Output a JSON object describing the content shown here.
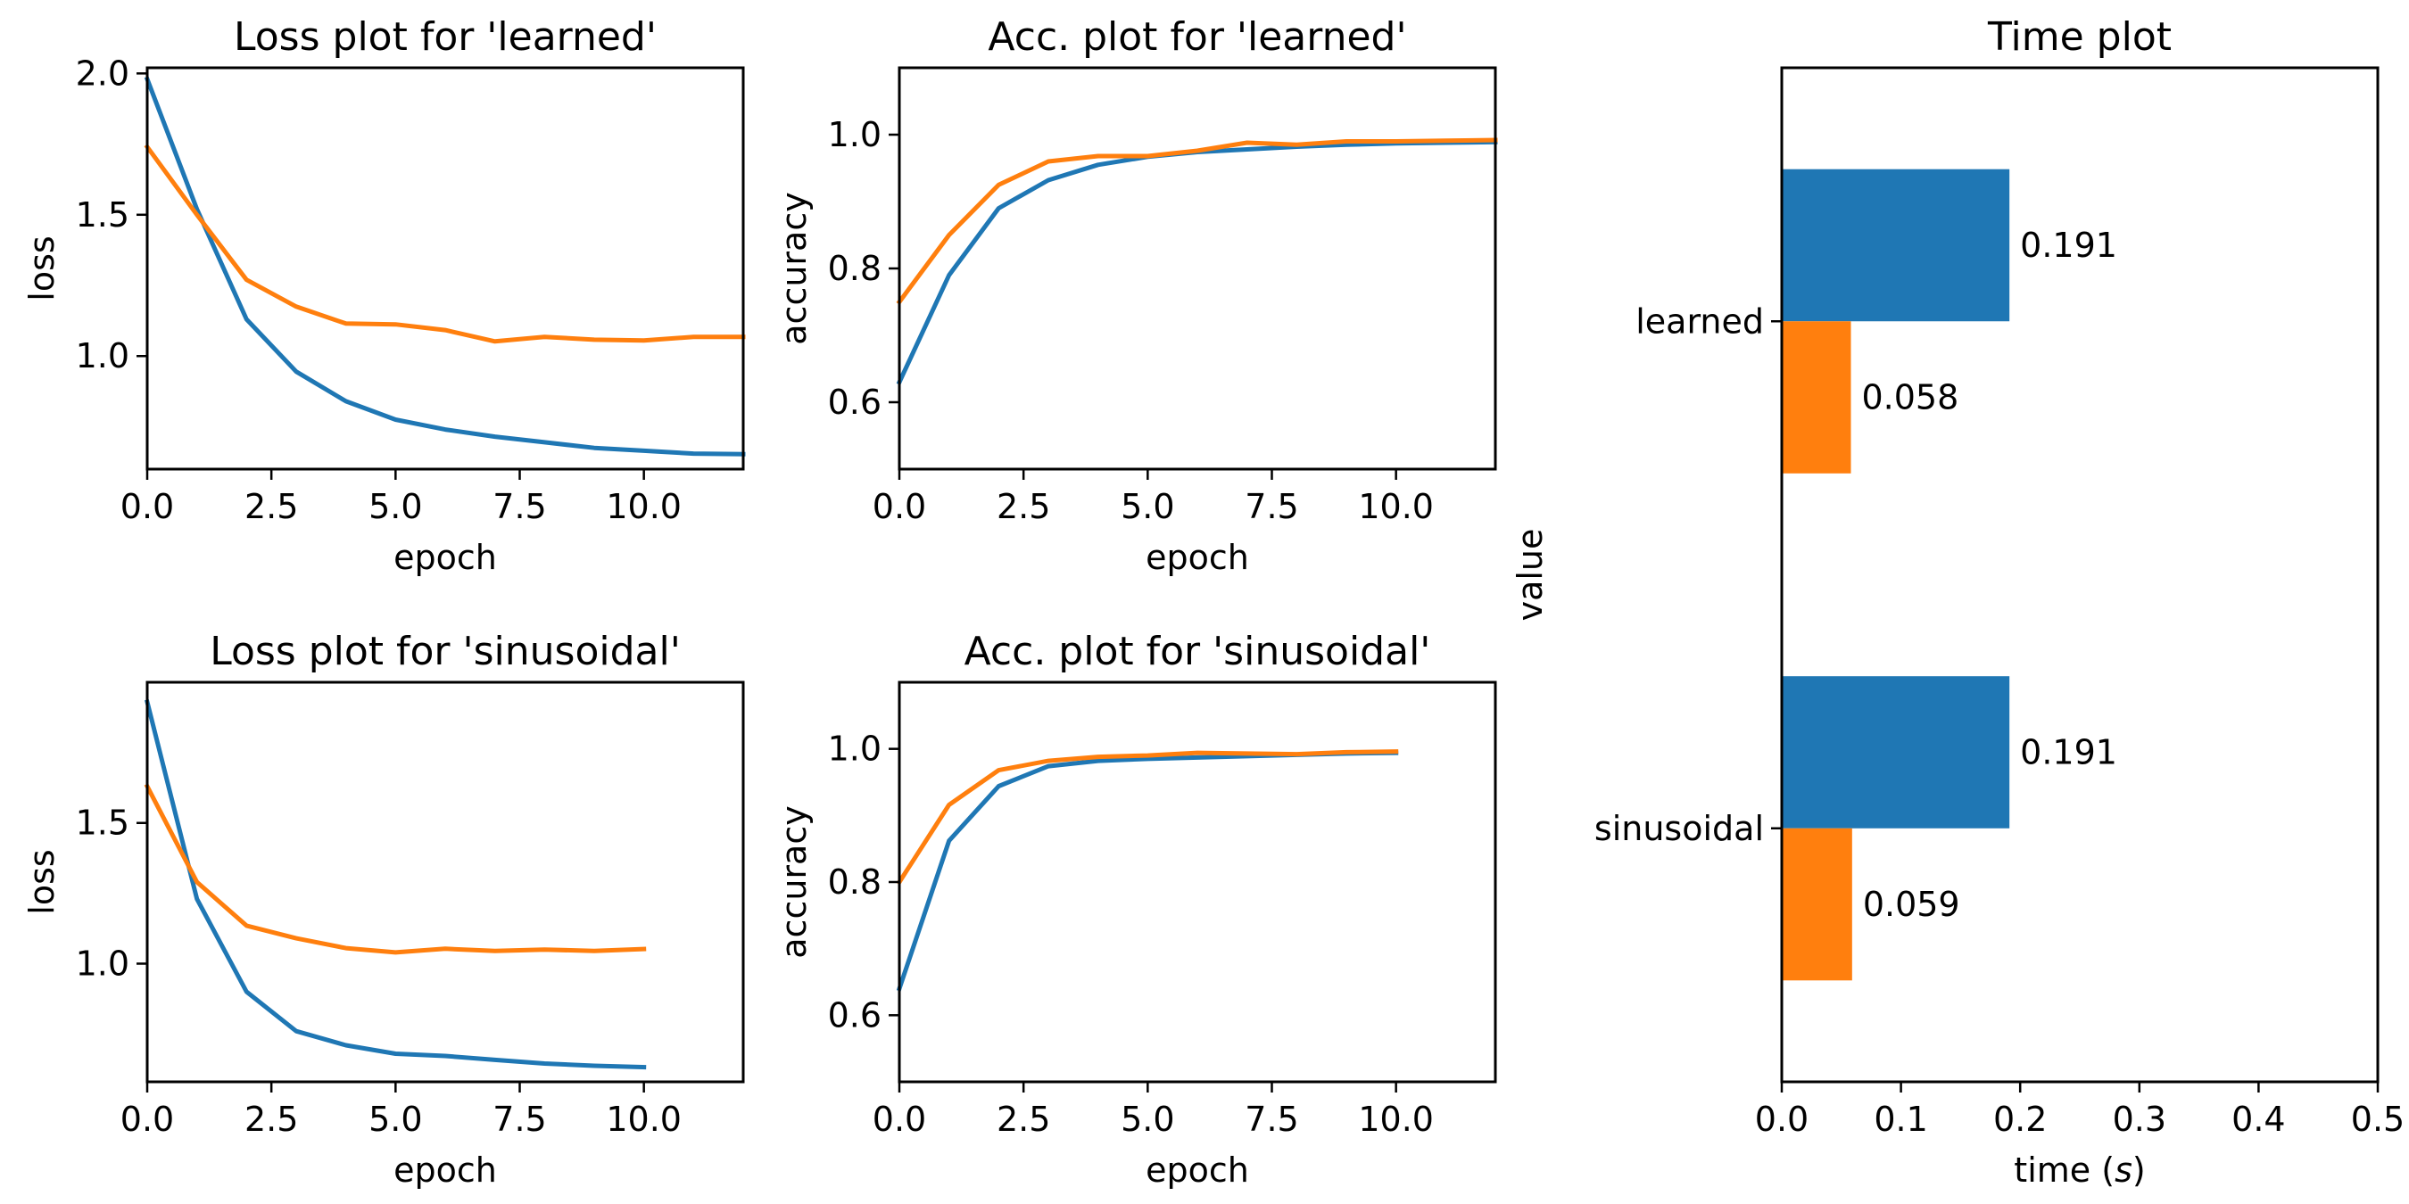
{
  "colors": {
    "blue": "#1f77b4",
    "orange": "#ff7f0e"
  },
  "chart_data": [
    {
      "id": "loss-learned",
      "type": "line",
      "title": "Loss plot for 'learned'",
      "xlabel": "epoch",
      "ylabel": "loss",
      "xlim": [
        0,
        12
      ],
      "ylim": [
        0.6,
        2.02
      ],
      "xticks": [
        0,
        2.5,
        5,
        7.5,
        10
      ],
      "xtick_labels": [
        "0.0",
        "2.5",
        "5.0",
        "7.5",
        "10.0"
      ],
      "yticks": [
        1.0,
        1.5,
        2.0
      ],
      "ytick_labels": [
        "1.0",
        "1.5",
        "2.0"
      ],
      "grid": false,
      "x": [
        0,
        1,
        2,
        3,
        4,
        5,
        6,
        7,
        8,
        9,
        10,
        11,
        12
      ],
      "series": [
        {
          "color": "#1f77b4",
          "values": [
            1.98,
            1.52,
            1.13,
            0.945,
            0.84,
            0.775,
            0.74,
            0.715,
            0.695,
            0.675,
            0.665,
            0.655,
            0.653
          ]
        },
        {
          "color": "#ff7f0e",
          "values": [
            1.74,
            1.5,
            1.27,
            1.175,
            1.115,
            1.112,
            1.092,
            1.052,
            1.068,
            1.058,
            1.055,
            1.068,
            1.068
          ]
        }
      ]
    },
    {
      "id": "acc-learned",
      "type": "line",
      "title": "Acc. plot for 'learned'",
      "xlabel": "epoch",
      "ylabel": "accuracy",
      "xlim": [
        0,
        12
      ],
      "ylim": [
        0.5,
        1.1
      ],
      "xticks": [
        0,
        2.5,
        5,
        7.5,
        10
      ],
      "xtick_labels": [
        "0.0",
        "2.5",
        "5.0",
        "7.5",
        "10.0"
      ],
      "yticks": [
        0.6,
        0.8,
        1.0
      ],
      "ytick_labels": [
        "0.6",
        "0.8",
        "1.0"
      ],
      "grid": false,
      "x": [
        0,
        1,
        2,
        3,
        4,
        5,
        6,
        7,
        8,
        9,
        10,
        11,
        12
      ],
      "series": [
        {
          "color": "#1f77b4",
          "values": [
            0.63,
            0.79,
            0.89,
            0.932,
            0.955,
            0.967,
            0.974,
            0.978,
            0.982,
            0.985,
            0.987,
            0.988,
            0.989
          ]
        },
        {
          "color": "#ff7f0e",
          "values": [
            0.75,
            0.85,
            0.925,
            0.96,
            0.968,
            0.968,
            0.976,
            0.988,
            0.985,
            0.99,
            0.99,
            0.991,
            0.992
          ]
        }
      ]
    },
    {
      "id": "loss-sinusoidal",
      "type": "line",
      "title": "Loss plot for 'sinusoidal'",
      "xlabel": "epoch",
      "ylabel": "loss",
      "xlim": [
        0,
        12
      ],
      "ylim": [
        0.58,
        2.0
      ],
      "xticks": [
        0,
        2.5,
        5,
        7.5,
        10
      ],
      "xtick_labels": [
        "0.0",
        "2.5",
        "5.0",
        "7.5",
        "10.0"
      ],
      "yticks": [
        1.0,
        1.5
      ],
      "ytick_labels": [
        "1.0",
        "1.5"
      ],
      "grid": false,
      "x": [
        0,
        1,
        2,
        3,
        4,
        5,
        6,
        7,
        8,
        9,
        10
      ],
      "series": [
        {
          "color": "#1f77b4",
          "values": [
            1.93,
            1.23,
            0.9,
            0.76,
            0.71,
            0.68,
            0.672,
            0.658,
            0.645,
            0.637,
            0.632
          ]
        },
        {
          "color": "#ff7f0e",
          "values": [
            1.63,
            1.29,
            1.135,
            1.09,
            1.055,
            1.04,
            1.053,
            1.045,
            1.05,
            1.045,
            1.052
          ]
        }
      ]
    },
    {
      "id": "acc-sinusoidal",
      "type": "line",
      "title": "Acc. plot for 'sinusoidal'",
      "xlabel": "epoch",
      "ylabel": "accuracy",
      "xlim": [
        0,
        12
      ],
      "ylim": [
        0.5,
        1.1
      ],
      "xticks": [
        0,
        2.5,
        5,
        7.5,
        10
      ],
      "xtick_labels": [
        "0.0",
        "2.5",
        "5.0",
        "7.5",
        "10.0"
      ],
      "yticks": [
        0.6,
        0.8,
        1.0
      ],
      "ytick_labels": [
        "0.6",
        "0.8",
        "1.0"
      ],
      "grid": false,
      "x": [
        0,
        1,
        2,
        3,
        4,
        5,
        6,
        7,
        8,
        9,
        10
      ],
      "series": [
        {
          "color": "#1f77b4",
          "values": [
            0.64,
            0.862,
            0.944,
            0.974,
            0.982,
            0.985,
            0.987,
            0.989,
            0.991,
            0.993,
            0.994
          ]
        },
        {
          "color": "#ff7f0e",
          "values": [
            0.8,
            0.916,
            0.968,
            0.982,
            0.988,
            0.99,
            0.994,
            0.993,
            0.992,
            0.995,
            0.996
          ]
        }
      ]
    },
    {
      "id": "time-plot",
      "type": "bar",
      "orientation": "horizontal",
      "title": "Time plot",
      "xlabel": "time (s)",
      "xlabel_parts": [
        "time (",
        "s",
        ")"
      ],
      "ylabel": "value",
      "xlim": [
        0,
        0.5
      ],
      "xticks": [
        0.0,
        0.1,
        0.2,
        0.3,
        0.4,
        0.5
      ],
      "xtick_labels": [
        "0.0",
        "0.1",
        "0.2",
        "0.3",
        "0.4",
        "0.5"
      ],
      "categories": [
        "learned",
        "sinusoidal"
      ],
      "grid": false,
      "series": [
        {
          "color": "#1f77b4",
          "values": [
            0.191,
            0.191
          ],
          "labels": [
            "0.191",
            "0.191"
          ]
        },
        {
          "color": "#ff7f0e",
          "values": [
            0.058,
            0.059
          ],
          "labels": [
            "0.058",
            "0.059"
          ]
        }
      ]
    }
  ]
}
